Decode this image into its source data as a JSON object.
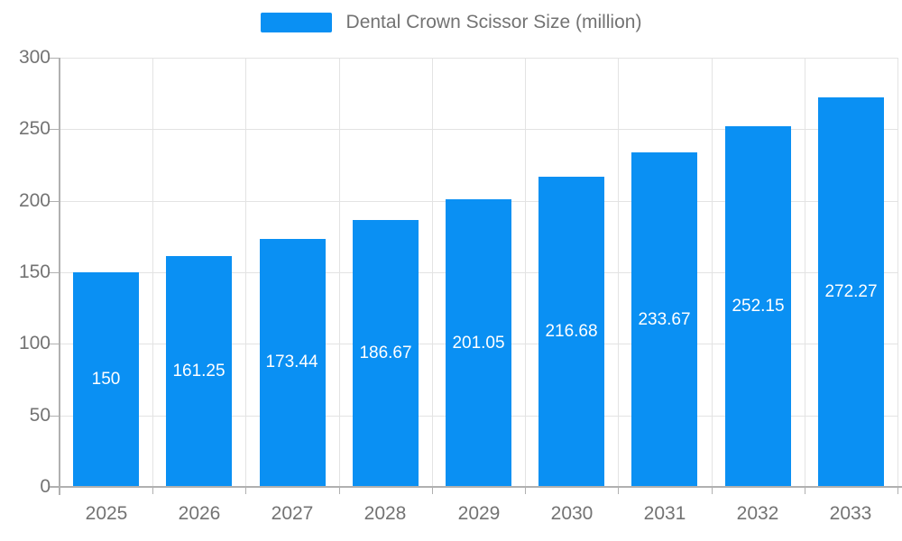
{
  "chart_data": {
    "type": "bar",
    "title": "Dental Crown Scissor Size (million)",
    "legend": "Dental Crown Scissor Size (million)",
    "legend_position": "top-center",
    "categories": [
      "2025",
      "2026",
      "2027",
      "2028",
      "2029",
      "2030",
      "2031",
      "2032",
      "2033"
    ],
    "values": [
      150,
      161.25,
      173.44,
      186.67,
      201.05,
      216.68,
      233.67,
      252.15,
      272.27
    ],
    "value_labels": [
      "150",
      "161.25",
      "173.44",
      "186.67",
      "201.05",
      "216.68",
      "233.67",
      "252.15",
      "272.27"
    ],
    "xlabel": "",
    "ylabel": "",
    "ylim": [
      0,
      300
    ],
    "y_ticks": [
      0,
      50,
      100,
      150,
      200,
      250,
      300
    ],
    "grid": true,
    "colors": {
      "bar": "#0a90f3",
      "value_label": "#ffffff",
      "gridline": "#e3e3e3",
      "axis_line": "#b0b0b0",
      "tick_text": "#737373",
      "legend_text": "#737373",
      "background": "#ffffff"
    }
  }
}
